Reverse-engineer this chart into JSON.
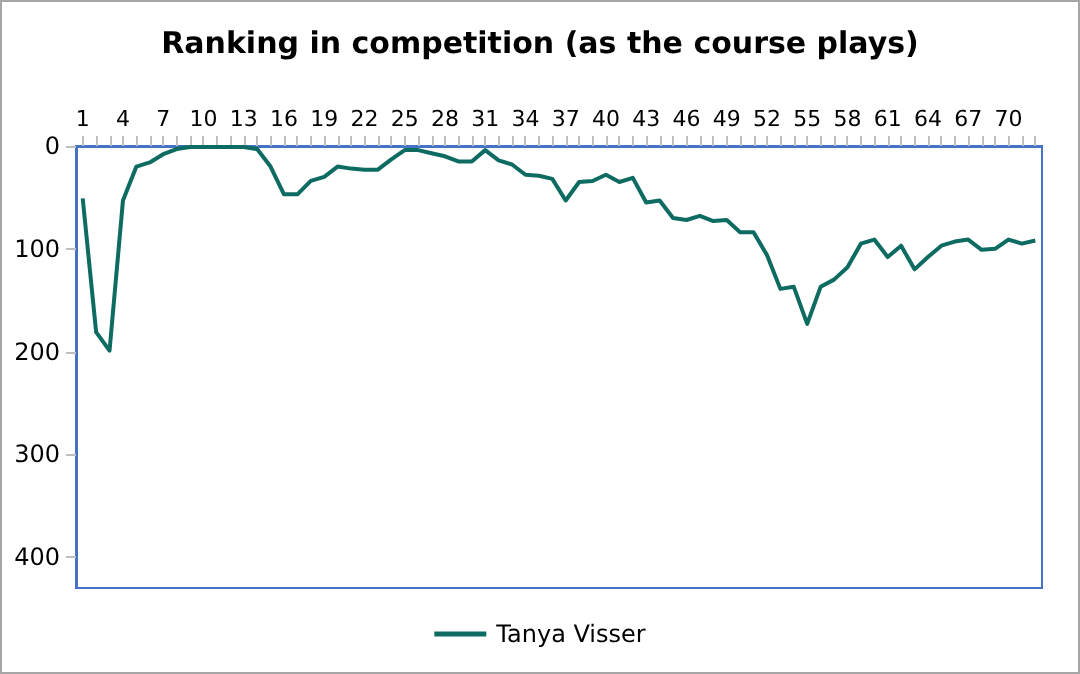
{
  "chart_data": {
    "type": "line",
    "title": "Ranking in competition (as the course plays)",
    "categories": [
      "1",
      null,
      null,
      "4",
      null,
      null,
      "7",
      null,
      null,
      "10",
      null,
      null,
      "13",
      null,
      null,
      "16",
      null,
      null,
      "19",
      null,
      null,
      "22",
      null,
      null,
      "25",
      null,
      null,
      "28",
      null,
      null,
      "31",
      null,
      null,
      "34",
      null,
      null,
      "37",
      null,
      null,
      "40",
      null,
      null,
      "43",
      null,
      null,
      "46",
      null,
      null,
      "49",
      null,
      null,
      "52",
      null,
      null,
      "55",
      null,
      null,
      "58",
      null,
      null,
      "61",
      null,
      null,
      "64",
      null,
      null,
      "67",
      null,
      null,
      "70",
      null,
      null
    ],
    "series": [
      {
        "name": "Tanya Visser",
        "color": "#0e6b62",
        "values": [
          51,
          181,
          199,
          53,
          20,
          16,
          8,
          3,
          1,
          1,
          1,
          1,
          1,
          3,
          20,
          47,
          47,
          34,
          30,
          20,
          22,
          23,
          23,
          13,
          4,
          4,
          7,
          10,
          15,
          15,
          4,
          14,
          18,
          28,
          29,
          32,
          53,
          35,
          34,
          28,
          35,
          31,
          55,
          53,
          70,
          72,
          68,
          73,
          72,
          84,
          84,
          106,
          139,
          137,
          173,
          137,
          130,
          118,
          95,
          91,
          108,
          97,
          120,
          108,
          97,
          93,
          91,
          101,
          100,
          91,
          95,
          92
        ]
      }
    ],
    "ylim": [
      430,
      0
    ],
    "yticks": [
      0,
      100,
      200,
      300,
      400
    ],
    "grid": false,
    "legend": "bottom",
    "marker": "none",
    "line_style": "solid"
  }
}
